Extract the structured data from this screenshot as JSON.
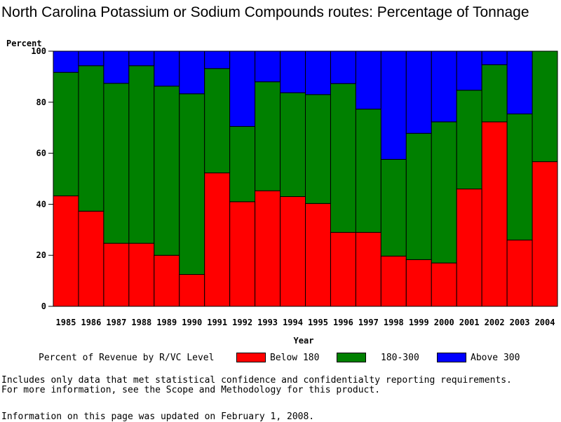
{
  "chart_data": {
    "type": "bar",
    "stacked": true,
    "title": "North Carolina Potassium or Sodium Compounds routes: Percentage of Tonnage",
    "xlabel": "Year",
    "ylabel": "Percent",
    "ylim": [
      0,
      100
    ],
    "yticks": [
      0,
      20,
      40,
      60,
      80,
      100
    ],
    "categories": [
      "1985",
      "1986",
      "1987",
      "1988",
      "1989",
      "1990",
      "1991",
      "1992",
      "1993",
      "1994",
      "1995",
      "1996",
      "1997",
      "1998",
      "1999",
      "2000",
      "2001",
      "2002",
      "2003",
      "2004"
    ],
    "legend_title": "Percent of Revenue by R/VC Level",
    "legend_placement": "bottom",
    "grid": false,
    "series": [
      {
        "name": "Below 180",
        "color": "#ff0000",
        "values": [
          43.3,
          37.3,
          24.7,
          24.7,
          20.0,
          12.5,
          52.3,
          41.0,
          45.3,
          43.0,
          40.3,
          29.0,
          29.0,
          19.7,
          18.3,
          17.0,
          46.0,
          72.3,
          26.0,
          56.7
        ]
      },
      {
        "name": "180-300",
        "color": "#008000",
        "values": [
          48.4,
          57.0,
          62.7,
          69.6,
          66.3,
          70.8,
          40.9,
          29.5,
          42.7,
          40.7,
          42.7,
          58.3,
          48.3,
          37.9,
          49.5,
          55.3,
          38.7,
          22.4,
          49.4,
          43.3
        ]
      },
      {
        "name": "Above 300",
        "color": "#0000ff",
        "values": [
          8.3,
          5.7,
          12.6,
          5.7,
          13.7,
          16.7,
          6.8,
          29.5,
          12.0,
          16.3,
          17.0,
          12.7,
          22.7,
          42.4,
          32.2,
          27.7,
          15.3,
          5.3,
          24.6,
          0.0
        ]
      }
    ]
  },
  "footnotes": [
    "Includes only data that met statistical confidence and confidentialty reporting requirements.",
    "For more information, see the Scope and Methodology for this product."
  ],
  "updated_text": "Information on this page was updated on February 1, 2008."
}
